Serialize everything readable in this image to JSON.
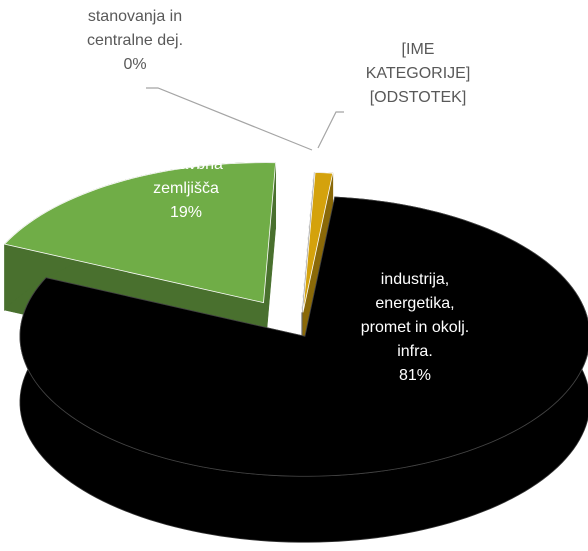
{
  "chart_data": {
    "type": "pie3d",
    "categories": [
      "industrija, energetika, promet in okolj. infra.",
      "nestavbna zemljišča",
      "stanovanja in centralne dej.",
      "[IME KATEGORIJE] [ODSTOTEK]"
    ],
    "values": [
      81,
      19,
      0,
      1
    ],
    "value_labels": [
      "81%",
      "19%",
      "0%",
      null
    ],
    "colors": [
      "#000000",
      "#70ad47",
      "#a5a5a5",
      "#d4a20c"
    ]
  }
}
